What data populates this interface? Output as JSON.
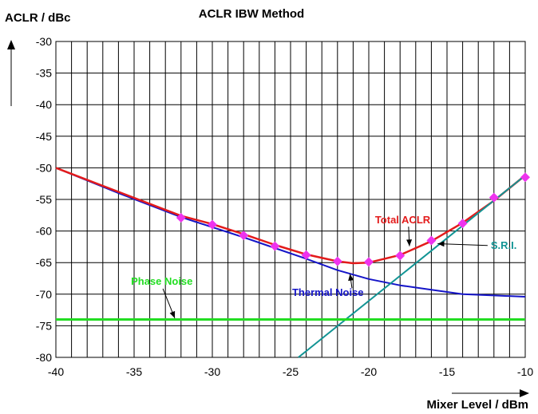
{
  "chart_data": {
    "type": "line",
    "title": "ACLR IBW Method",
    "xlabel": "Mixer Level / dBm",
    "ylabel": "ACLR / dBc",
    "xlim": [
      -40,
      -10
    ],
    "ylim": [
      -80,
      -30
    ],
    "xticks": [
      -40,
      -35,
      -30,
      -25,
      -20,
      -15,
      -10
    ],
    "yticks": [
      -30,
      -35,
      -40,
      -45,
      -50,
      -55,
      -60,
      -65,
      -70,
      -75,
      -80
    ],
    "grid": true,
    "series": [
      {
        "name": "Thermal Noise",
        "color": "#1515c8",
        "x": [
          -40,
          -36,
          -32,
          -28,
          -26,
          -24,
          -22,
          -20,
          -18,
          -16,
          -14,
          -12,
          -10
        ],
        "y": [
          -50,
          -54,
          -57.8,
          -61,
          -62.7,
          -64.4,
          -66.2,
          -67.6,
          -68.6,
          -69.3,
          -70.0,
          -70.2,
          -70.4
        ]
      },
      {
        "name": "Total ACLR",
        "color": "#e31b1b",
        "x": [
          -40,
          -36,
          -32,
          -30,
          -28,
          -26,
          -24,
          -22,
          -21,
          -20,
          -18,
          -16,
          -14,
          -12,
          -10
        ],
        "y": [
          -50,
          -53.8,
          -57.6,
          -58.9,
          -60.5,
          -62.2,
          -63.7,
          -64.8,
          -65.1,
          -65.0,
          -63.8,
          -61.6,
          -58.7,
          -55.2,
          -51.2
        ]
      },
      {
        "name": "S.R.I.",
        "color": "#129494",
        "x": [
          -24.5,
          -10
        ],
        "y": [
          -80,
          -51.2
        ]
      },
      {
        "name": "Phase Noise",
        "color": "#22dd22",
        "x": [
          -40,
          -10
        ],
        "y": [
          -74,
          -74
        ]
      }
    ],
    "markers": {
      "color": "#ee33ee",
      "x": [
        -32,
        -30,
        -28,
        -26,
        -24,
        -22,
        -20,
        -18,
        -16,
        -14,
        -12,
        -10
      ],
      "y": [
        -57.9,
        -59.0,
        -60.7,
        -62.4,
        -63.8,
        -64.8,
        -64.9,
        -63.9,
        -61.5,
        -58.8,
        -54.7,
        -51.5
      ]
    },
    "annotations": [
      {
        "text": "Total ACLR",
        "color": "#e31b1b",
        "tx": -19.6,
        "ty": -58.8,
        "px": -17.4,
        "py": -62.4
      },
      {
        "text": "S.R.I.",
        "color": "#129494",
        "tx": -12.2,
        "ty": -62.8,
        "px": -15.6,
        "py": -62.0
      },
      {
        "text": "Thermal Noise",
        "color": "#1515c8",
        "tx": -24.9,
        "ty": -70.3,
        "px": -21.2,
        "py": -66.8
      },
      {
        "text": "Phase Noise",
        "color": "#22dd22",
        "tx": -35.2,
        "ty": -68.5,
        "px": -32.4,
        "py": -73.8
      }
    ]
  }
}
